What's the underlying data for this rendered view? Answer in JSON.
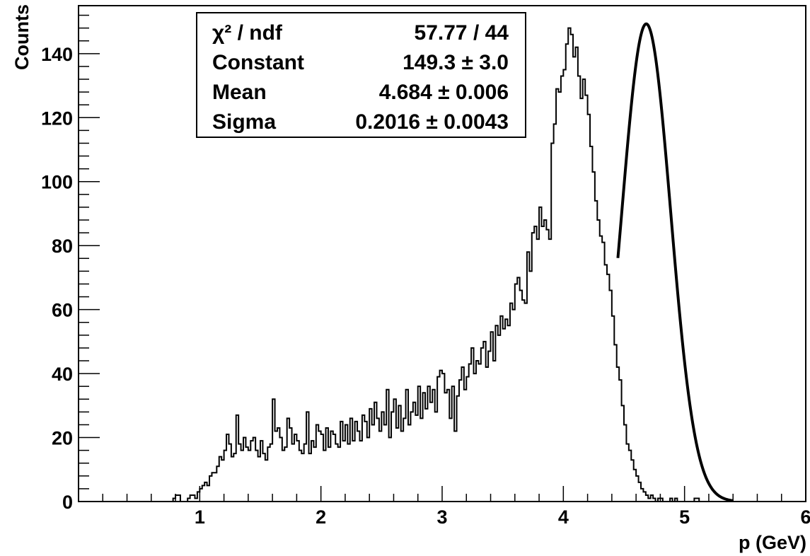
{
  "chart_data": {
    "type": "histogram",
    "title": "",
    "xlabel": "p (GeV)",
    "ylabel": "Counts",
    "xlim": [
      0.0,
      6.0
    ],
    "ylim": [
      0,
      155
    ],
    "xticks": [
      1,
      2,
      3,
      4,
      5,
      6
    ],
    "yticks": [
      0,
      20,
      40,
      60,
      80,
      100,
      120,
      140
    ],
    "grid": false,
    "bin_width": 0.02,
    "bins_start": 0.0,
    "counts": [
      0,
      0,
      0,
      0,
      0,
      0,
      0,
      0,
      0,
      0,
      0,
      0,
      0,
      0,
      0,
      0,
      0,
      0,
      0,
      0,
      0,
      0,
      0,
      0,
      0,
      0,
      0,
      0,
      0,
      0,
      0,
      0,
      0,
      0,
      0,
      0,
      0,
      0,
      0,
      1,
      2,
      2,
      0,
      0,
      0,
      1,
      2,
      2,
      1,
      3,
      4,
      5,
      6,
      5,
      8,
      9,
      9,
      11,
      14,
      13,
      16,
      21,
      18,
      14,
      15,
      27,
      18,
      16,
      20,
      17,
      16,
      19,
      20,
      16,
      14,
      19,
      15,
      13,
      17,
      18,
      32,
      22,
      23,
      20,
      16,
      17,
      26,
      23,
      18,
      21,
      19,
      16,
      15,
      18,
      28,
      15,
      19,
      17,
      24,
      22,
      21,
      16,
      23,
      17,
      22,
      21,
      18,
      17,
      25,
      19,
      24,
      18,
      26,
      19,
      25,
      22,
      19,
      27,
      25,
      20,
      29,
      24,
      31,
      26,
      22,
      28,
      24,
      35,
      20,
      28,
      32,
      23,
      30,
      22,
      26,
      35,
      24,
      28,
      31,
      27,
      36,
      26,
      34,
      29,
      36,
      31,
      35,
      28,
      39,
      41,
      40,
      34,
      35,
      26,
      36,
      22,
      33,
      38,
      42,
      35,
      39,
      43,
      48,
      40,
      44,
      43,
      48,
      50,
      42,
      47,
      53,
      44,
      55,
      52,
      58,
      54,
      57,
      55,
      62,
      60,
      68,
      70,
      66,
      63,
      62,
      78,
      72,
      84,
      86,
      82,
      92,
      86,
      88,
      85,
      82,
      112,
      118,
      129,
      128,
      133,
      135,
      143,
      148,
      146,
      139,
      142,
      133,
      126,
      132,
      127,
      121,
      111,
      103,
      94,
      88,
      83,
      81,
      74,
      71,
      66,
      58,
      49,
      42,
      38,
      30,
      24,
      18,
      16,
      13,
      10,
      8,
      6,
      4,
      3,
      2,
      1,
      2,
      1,
      0,
      1,
      1,
      0,
      0,
      0,
      1,
      0,
      1,
      0,
      0,
      0,
      0,
      0,
      0,
      0,
      1,
      1,
      0,
      0,
      0,
      0
    ],
    "fit": {
      "function": "gaus",
      "range": [
        4.45,
        5.4
      ],
      "constant": 149.3,
      "mean": 4.684,
      "sigma": 0.2016
    },
    "stats_box": {
      "placement": "top-left",
      "rows": [
        {
          "label": "χ² / ndf",
          "value": "57.77 / 44"
        },
        {
          "label": "Constant",
          "value": "149.3 ± 3.0"
        },
        {
          "label": "Mean",
          "value": "4.684 ± 0.006"
        },
        {
          "label": "Sigma",
          "value": "0.2016 ± 0.0043"
        }
      ]
    }
  }
}
